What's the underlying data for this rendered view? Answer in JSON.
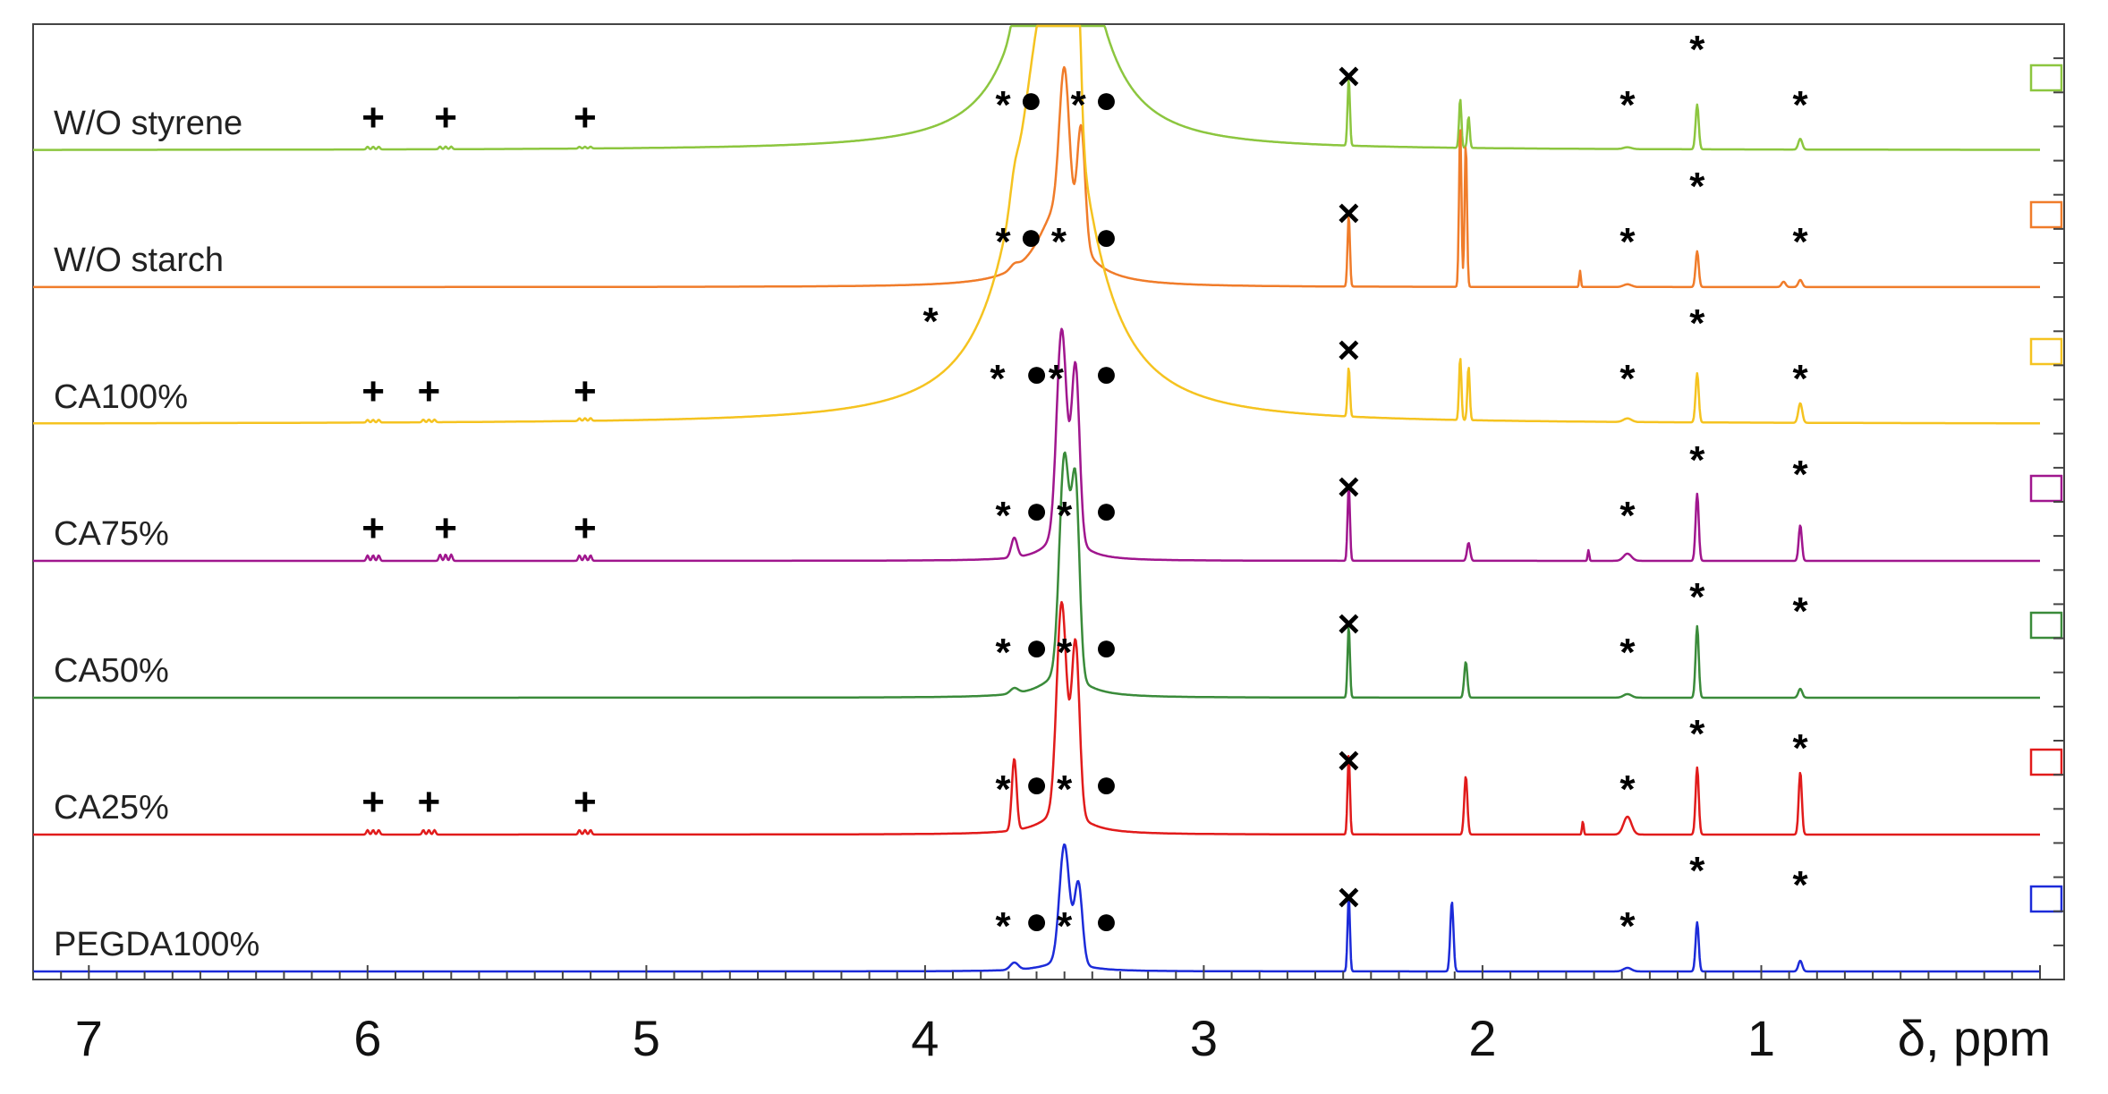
{
  "chart_data": {
    "type": "line",
    "title": "",
    "xlabel": "δ, ppm",
    "ylabel": "",
    "xlim": [
      7.2,
      0.0
    ],
    "x_reversed": true,
    "x_ticks": [
      7,
      6,
      5,
      4,
      3,
      2,
      1
    ],
    "grid": false,
    "legend": "none",
    "symbols": {
      "star": "*",
      "dot": "●",
      "plus": "+",
      "cross": "×"
    },
    "floating_markers": [
      {
        "symbol": "star",
        "ppm": 3.98,
        "near_series": 2
      }
    ],
    "series": [
      {
        "name": "W/O styrene",
        "color": "#8cc63f",
        "vinyl_peaks": [
          [
            5.98,
            0.03
          ],
          [
            5.72,
            0.03
          ],
          [
            5.22,
            0.02
          ]
        ],
        "peaks": [
          [
            3.68,
            0.12,
            0.02
          ],
          [
            3.5,
            2.6,
            0.03
          ],
          [
            3.46,
            2.0,
            0.02
          ],
          [
            2.48,
            0.75,
            0.006
          ],
          [
            2.08,
            0.55,
            0.006
          ],
          [
            2.05,
            0.35,
            0.006
          ],
          [
            1.48,
            0.02,
            0.02
          ],
          [
            1.23,
            0.5,
            0.008
          ],
          [
            0.86,
            0.12,
            0.01
          ]
        ],
        "broad": [
          [
            3.52,
            4.0,
            0.12
          ]
        ],
        "markers": [
          [
            "plus",
            5.98
          ],
          [
            "plus",
            5.72
          ],
          [
            "plus",
            5.22
          ],
          [
            "star",
            3.72
          ],
          [
            "dot",
            3.62
          ],
          [
            "star",
            3.45
          ],
          [
            "dot",
            3.35
          ],
          [
            "cross",
            2.48
          ],
          [
            "star",
            1.48
          ],
          [
            "star",
            1.23
          ],
          [
            "star",
            0.86
          ]
        ]
      },
      {
        "name": "W/O starch",
        "color": "#f07c2a",
        "vinyl_peaks": [],
        "peaks": [
          [
            3.68,
            0.05,
            0.02
          ],
          [
            3.5,
            1.6,
            0.025
          ],
          [
            3.44,
            1.3,
            0.02
          ],
          [
            2.48,
            0.8,
            0.006
          ],
          [
            2.08,
            1.8,
            0.006
          ],
          [
            2.06,
            1.6,
            0.006
          ],
          [
            1.65,
            0.18,
            0.004
          ],
          [
            1.48,
            0.03,
            0.02
          ],
          [
            1.23,
            0.4,
            0.008
          ],
          [
            0.92,
            0.06,
            0.01
          ],
          [
            0.86,
            0.08,
            0.01
          ]
        ],
        "broad": [
          [
            3.52,
            0.9,
            0.09
          ]
        ],
        "markers": [
          [
            "star",
            3.72
          ],
          [
            "dot",
            3.62
          ],
          [
            "star",
            3.52
          ],
          [
            "dot",
            3.35
          ],
          [
            "cross",
            2.48
          ],
          [
            "star",
            1.48
          ],
          [
            "star",
            1.23
          ],
          [
            "star",
            0.86
          ]
        ]
      },
      {
        "name": "CA100%",
        "color": "#f5c320",
        "vinyl_peaks": [
          [
            5.98,
            0.03
          ],
          [
            5.78,
            0.03
          ],
          [
            5.22,
            0.03
          ]
        ],
        "peaks": [
          [
            3.68,
            0.2,
            0.02
          ],
          [
            3.5,
            2.8,
            0.03
          ],
          [
            3.46,
            2.5,
            0.02
          ],
          [
            2.48,
            0.55,
            0.006
          ],
          [
            2.08,
            0.7,
            0.006
          ],
          [
            2.05,
            0.6,
            0.006
          ],
          [
            1.48,
            0.04,
            0.02
          ],
          [
            1.23,
            0.55,
            0.008
          ],
          [
            0.86,
            0.22,
            0.01
          ]
        ],
        "broad": [
          [
            3.55,
            5.0,
            0.14
          ]
        ],
        "markers": [
          [
            "plus",
            5.98
          ],
          [
            "plus",
            5.78
          ],
          [
            "plus",
            5.22
          ],
          [
            "star",
            3.74
          ],
          [
            "dot",
            3.6
          ],
          [
            "star",
            3.53
          ],
          [
            "dot",
            3.35
          ],
          [
            "cross",
            2.48
          ],
          [
            "star",
            1.48
          ],
          [
            "star",
            1.23
          ],
          [
            "star",
            0.86
          ]
        ]
      },
      {
        "name": "CA75%",
        "color": "#a0168e",
        "vinyl_peaks": [
          [
            5.98,
            0.06
          ],
          [
            5.72,
            0.07
          ],
          [
            5.22,
            0.06
          ]
        ],
        "peaks": [
          [
            3.68,
            0.22,
            0.015
          ],
          [
            3.51,
            2.2,
            0.025
          ],
          [
            3.46,
            1.9,
            0.02
          ],
          [
            2.48,
            0.85,
            0.006
          ],
          [
            2.05,
            0.2,
            0.008
          ],
          [
            1.62,
            0.12,
            0.004
          ],
          [
            1.48,
            0.08,
            0.02
          ],
          [
            1.23,
            0.75,
            0.008
          ],
          [
            0.86,
            0.4,
            0.008
          ]
        ],
        "broad": [
          [
            3.5,
            0.4,
            0.06
          ]
        ],
        "markers": [
          [
            "plus",
            5.98
          ],
          [
            "plus",
            5.72
          ],
          [
            "plus",
            5.22
          ],
          [
            "star",
            3.72
          ],
          [
            "dot",
            3.6
          ],
          [
            "star",
            3.5
          ],
          [
            "dot",
            3.35
          ],
          [
            "cross",
            2.48
          ],
          [
            "star",
            1.48
          ],
          [
            "star",
            1.23
          ],
          [
            "star",
            0.86
          ]
        ]
      },
      {
        "name": "CA50%",
        "color": "#3a8b3a",
        "vinyl_peaks": [],
        "peaks": [
          [
            3.68,
            0.06,
            0.02
          ],
          [
            3.5,
            2.4,
            0.025
          ],
          [
            3.46,
            2.1,
            0.02
          ],
          [
            2.48,
            0.8,
            0.006
          ],
          [
            2.06,
            0.4,
            0.008
          ],
          [
            1.48,
            0.04,
            0.02
          ],
          [
            1.23,
            0.8,
            0.008
          ],
          [
            0.86,
            0.1,
            0.01
          ]
        ],
        "broad": [
          [
            3.5,
            0.3,
            0.08
          ]
        ],
        "markers": [
          [
            "star",
            3.72
          ],
          [
            "dot",
            3.6
          ],
          [
            "star",
            3.5
          ],
          [
            "dot",
            3.35
          ],
          [
            "cross",
            2.48
          ],
          [
            "star",
            1.48
          ],
          [
            "star",
            1.23
          ],
          [
            "star",
            0.86
          ]
        ]
      },
      {
        "name": "CA25%",
        "color": "#e11b1b",
        "vinyl_peaks": [
          [
            5.98,
            0.05
          ],
          [
            5.78,
            0.05
          ],
          [
            5.22,
            0.05
          ]
        ],
        "peaks": [
          [
            3.68,
            0.8,
            0.012
          ],
          [
            3.51,
            2.3,
            0.025
          ],
          [
            3.46,
            1.9,
            0.02
          ],
          [
            2.48,
            0.9,
            0.006
          ],
          [
            2.06,
            0.65,
            0.008
          ],
          [
            1.64,
            0.15,
            0.004
          ],
          [
            1.48,
            0.2,
            0.02
          ],
          [
            1.23,
            0.75,
            0.008
          ],
          [
            0.86,
            0.7,
            0.008
          ]
        ],
        "broad": [
          [
            3.5,
            0.3,
            0.08
          ]
        ],
        "markers": [
          [
            "plus",
            5.98
          ],
          [
            "plus",
            5.78
          ],
          [
            "plus",
            5.22
          ],
          [
            "star",
            3.72
          ],
          [
            "dot",
            3.6
          ],
          [
            "star",
            3.5
          ],
          [
            "dot",
            3.35
          ],
          [
            "cross",
            2.48
          ],
          [
            "star",
            1.48
          ],
          [
            "star",
            1.23
          ],
          [
            "star",
            0.86
          ]
        ]
      },
      {
        "name": "PEGDA100%",
        "color": "#1c2bd9",
        "vinyl_peaks": [],
        "peaks": [
          [
            3.68,
            0.08,
            0.02
          ],
          [
            3.5,
            1.3,
            0.025
          ],
          [
            3.45,
            0.9,
            0.02
          ],
          [
            2.48,
            0.85,
            0.006
          ],
          [
            2.11,
            0.78,
            0.008
          ],
          [
            1.48,
            0.04,
            0.02
          ],
          [
            1.23,
            0.55,
            0.008
          ],
          [
            0.86,
            0.12,
            0.01
          ]
        ],
        "broad": [
          [
            3.5,
            0.12,
            0.08
          ]
        ],
        "markers": [
          [
            "star",
            3.72
          ],
          [
            "dot",
            3.6
          ],
          [
            "star",
            3.5
          ],
          [
            "dot",
            3.35
          ],
          [
            "cross",
            2.48
          ],
          [
            "star",
            1.48
          ],
          [
            "star",
            1.23
          ],
          [
            "star",
            0.86
          ]
        ]
      }
    ]
  }
}
